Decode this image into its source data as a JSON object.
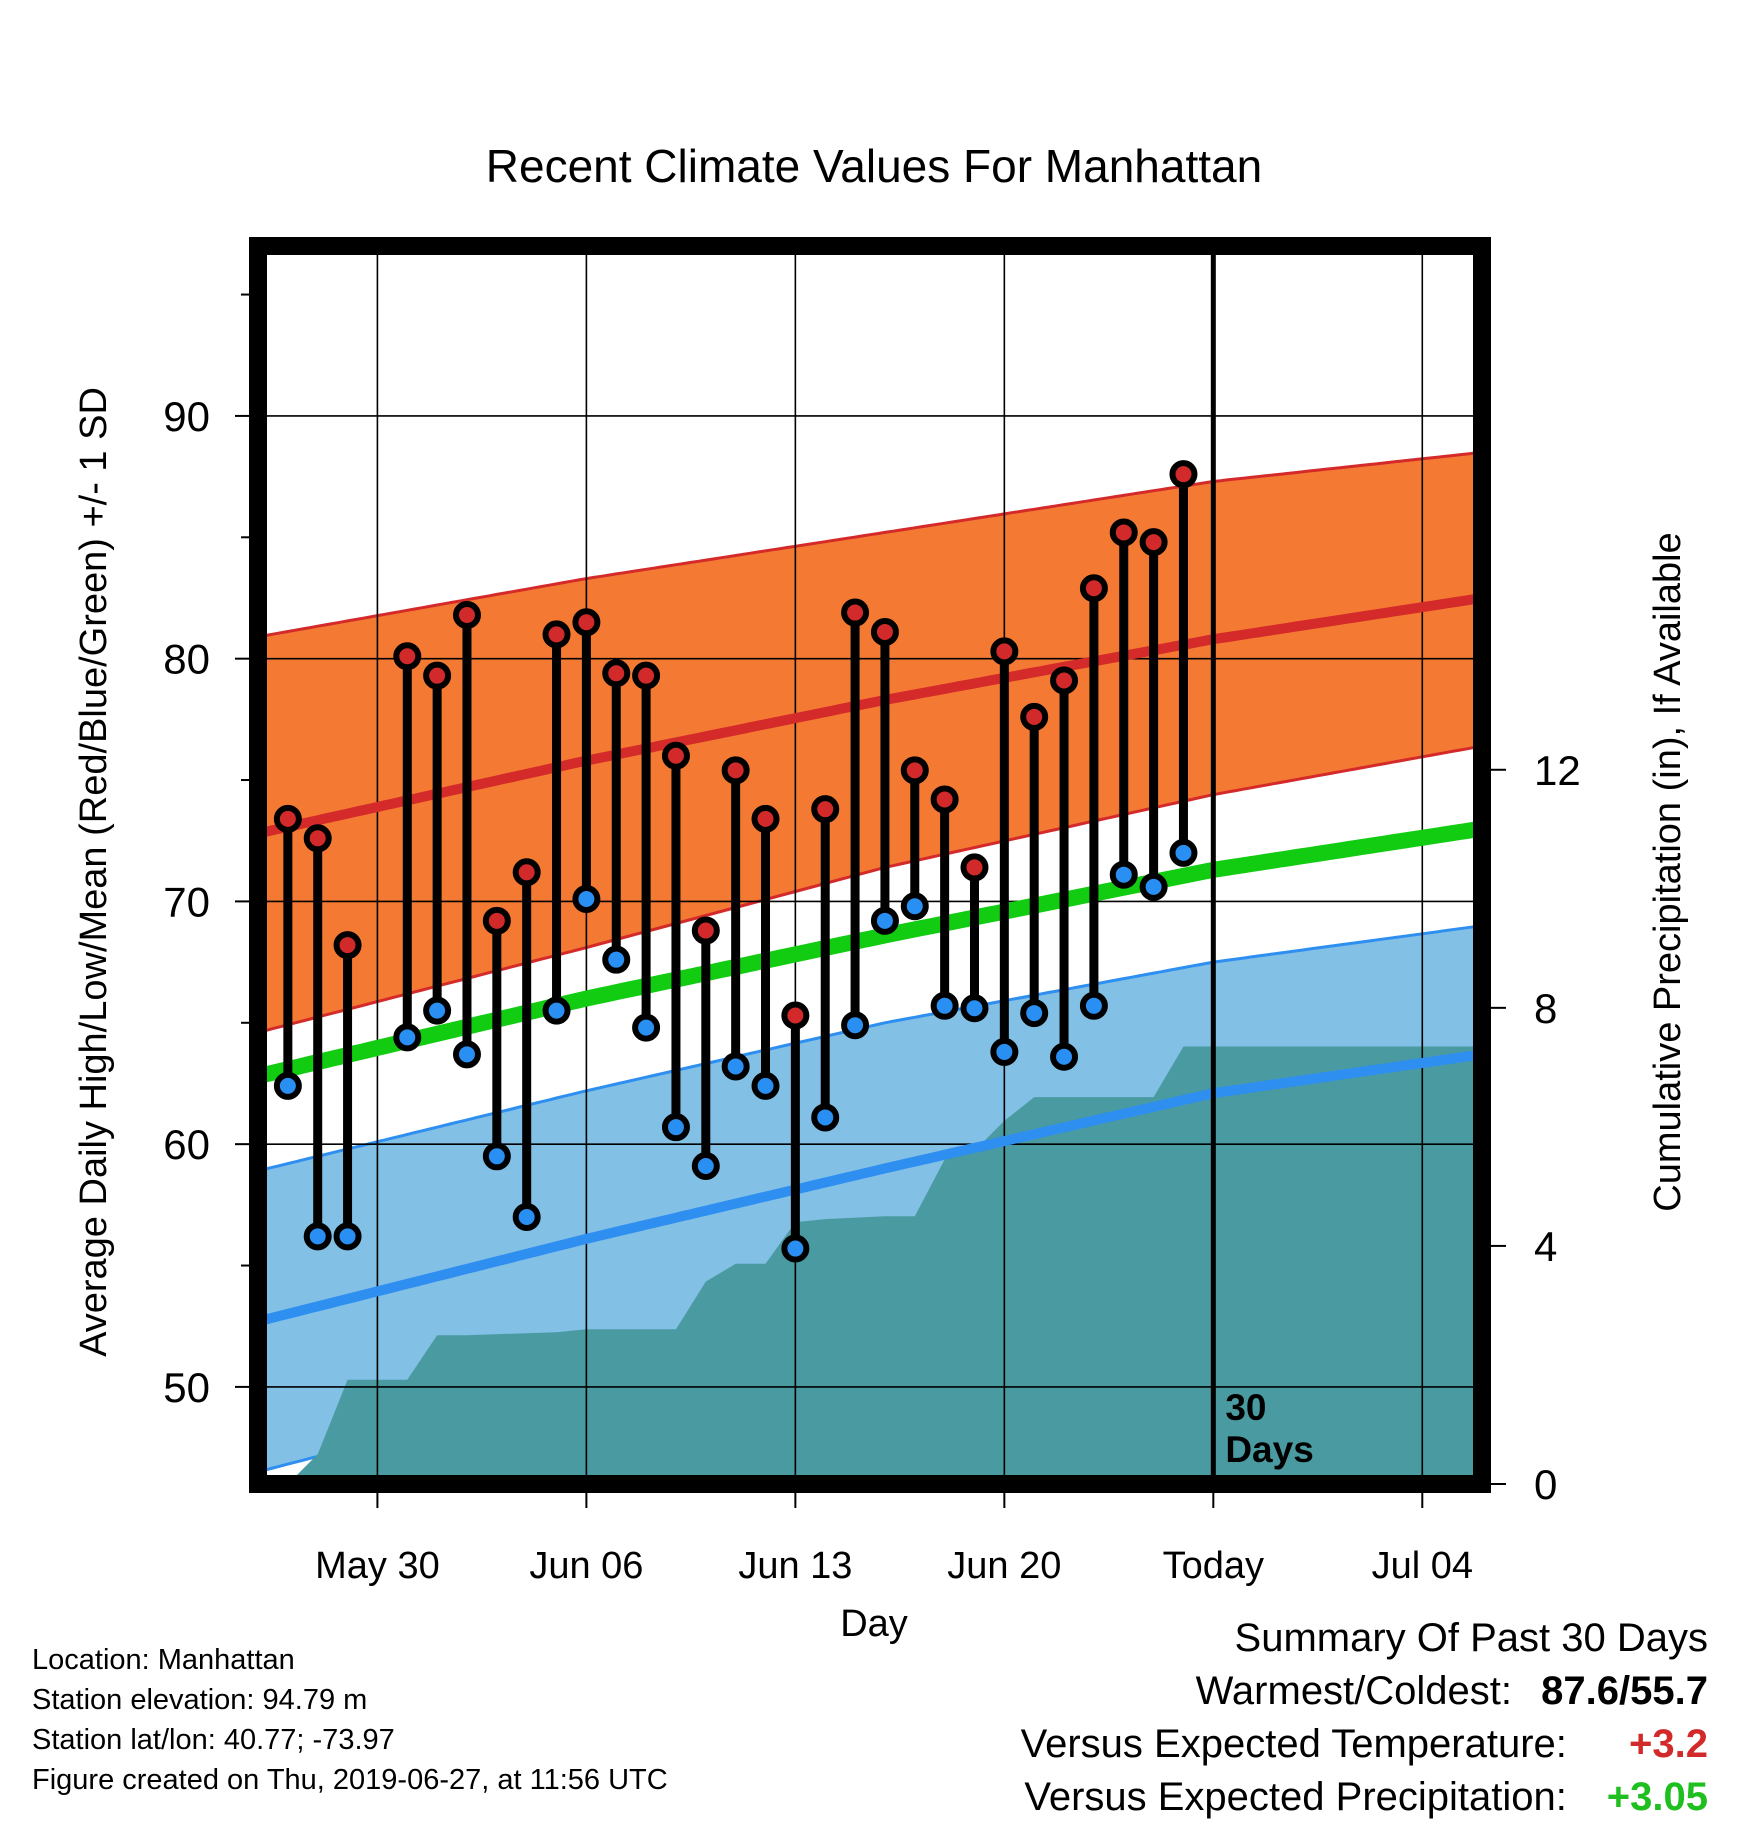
{
  "colors": {
    "high_band": "#f47a33",
    "high_band_edge": "#d42a2a",
    "normal_high": "#d42a2a",
    "low_band": "#82c0e6",
    "low_band_edge": "#2e8ff0",
    "normal_low": "#2e8ff0",
    "normal_mean": "#11cc11",
    "precip": "#4a9aa1",
    "high_marker": "#d22a2a",
    "low_marker": "#2a8ff2",
    "positive_temp": "#d22a2a",
    "positive_precip": "#1fbf1f"
  },
  "chart_data": {
    "type": "line",
    "title": "Recent Climate Values For Manhattan",
    "xlabel": "Day",
    "ylabel": "Average Daily High/Low/Mean (Red/Blue/Green) +/- 1 SD",
    "y2label": "Cumulative Precipitation (in), If Available",
    "x_tick_labels": [
      "May 30",
      "Jun 06",
      "Jun 13",
      "Jun 20",
      "Today",
      "Jul 04"
    ],
    "x_tick_dates": [
      "2019-05-30",
      "2019-06-06",
      "2019-06-13",
      "2019-06-20",
      "2019-06-27",
      "2019-07-04"
    ],
    "xlim": [
      "2019-05-26",
      "2019-07-06"
    ],
    "ylim": [
      46,
      97
    ],
    "y_ticks": [
      50,
      60,
      70,
      80,
      90
    ],
    "y2lim": [
      0,
      20.8
    ],
    "y2_ticks": [
      0,
      4,
      8,
      12
    ],
    "grid": true,
    "today_marker": {
      "date": "2019-06-27",
      "label_line1": "30",
      "label_line2": "Days"
    },
    "dates": [
      "2019-05-27",
      "2019-05-28",
      "2019-05-29",
      "2019-05-31",
      "2019-06-01",
      "2019-06-02",
      "2019-06-03",
      "2019-06-04",
      "2019-06-05",
      "2019-06-06",
      "2019-06-07",
      "2019-06-08",
      "2019-06-09",
      "2019-06-10",
      "2019-06-11",
      "2019-06-12",
      "2019-06-13",
      "2019-06-14",
      "2019-06-15",
      "2019-06-16",
      "2019-06-17",
      "2019-06-18",
      "2019-06-19",
      "2019-06-20",
      "2019-06-21",
      "2019-06-22",
      "2019-06-23",
      "2019-06-24",
      "2019-06-25",
      "2019-06-26"
    ],
    "series": [
      {
        "name": "High",
        "values": [
          73.4,
          72.6,
          68.2,
          80.1,
          79.3,
          81.8,
          69.2,
          71.2,
          81.0,
          81.5,
          79.4,
          79.3,
          76.0,
          68.8,
          75.4,
          73.4,
          65.3,
          73.8,
          81.9,
          81.1,
          75.4,
          74.2,
          71.4,
          80.3,
          77.6,
          79.1,
          82.9,
          85.2,
          84.8,
          87.6
        ]
      },
      {
        "name": "Low",
        "values": [
          62.4,
          56.2,
          56.2,
          64.4,
          65.5,
          63.7,
          59.5,
          57.0,
          65.5,
          70.1,
          67.6,
          64.8,
          60.7,
          59.1,
          63.2,
          62.4,
          55.7,
          61.1,
          64.9,
          69.2,
          69.8,
          65.7,
          65.6,
          63.8,
          65.4,
          63.6,
          65.7,
          71.1,
          70.6,
          72.0
        ]
      }
    ],
    "normals": {
      "dates": [
        "2019-05-26",
        "2019-06-06",
        "2019-06-16",
        "2019-06-27",
        "2019-07-06"
      ],
      "high_mean": [
        72.8,
        75.8,
        78.3,
        80.8,
        82.5
      ],
      "high_sd_upper": [
        80.9,
        83.3,
        85.2,
        87.3,
        88.5
      ],
      "high_sd_lower": [
        64.6,
        68.1,
        71.4,
        74.4,
        76.4
      ],
      "daily_mean": [
        62.8,
        66.0,
        68.6,
        71.3,
        73.0
      ],
      "low_mean": [
        52.7,
        56.1,
        59.0,
        62.1,
        63.7
      ],
      "low_sd_upper": [
        58.9,
        62.2,
        65.0,
        67.5,
        69.0
      ],
      "low_sd_lower": [
        46.5,
        50.0,
        53.1,
        56.2,
        58.0
      ]
    },
    "cumulative_precipitation": {
      "dates": [
        "2019-05-26",
        "2019-05-27",
        "2019-05-28",
        "2019-05-29",
        "2019-05-31",
        "2019-06-01",
        "2019-06-02",
        "2019-06-05",
        "2019-06-06",
        "2019-06-09",
        "2019-06-10",
        "2019-06-11",
        "2019-06-12",
        "2019-06-13",
        "2019-06-14",
        "2019-06-16",
        "2019-06-17",
        "2019-06-18",
        "2019-06-19",
        "2019-06-20",
        "2019-06-21",
        "2019-06-22",
        "2019-06-25",
        "2019-06-26",
        "2019-06-27",
        "2019-07-06"
      ],
      "values": [
        0.0,
        0.0,
        0.5,
        1.75,
        1.75,
        2.5,
        2.5,
        2.55,
        2.6,
        2.6,
        3.4,
        3.7,
        3.7,
        4.4,
        4.45,
        4.5,
        4.5,
        5.45,
        5.6,
        6.1,
        6.5,
        6.5,
        6.5,
        7.35,
        7.35,
        7.35
      ]
    }
  },
  "footer": {
    "location": "Location: Manhattan",
    "elevation": "Station elevation: 94.79 m",
    "latlon": "Station lat/lon: 40.77; -73.97",
    "created": "Figure created on Thu, 2019-06-27, at 11:56 UTC"
  },
  "summary": {
    "heading": "Summary Of Past 30 Days",
    "warmest_coldest_label": "Warmest/Coldest:",
    "warmest": "87.6",
    "slash": "/",
    "coldest": "55.7",
    "temp_label": "Versus Expected Temperature:",
    "temp_value": "+3.2",
    "precip_label": "Versus Expected Precipitation:",
    "precip_value": "+3.05"
  }
}
